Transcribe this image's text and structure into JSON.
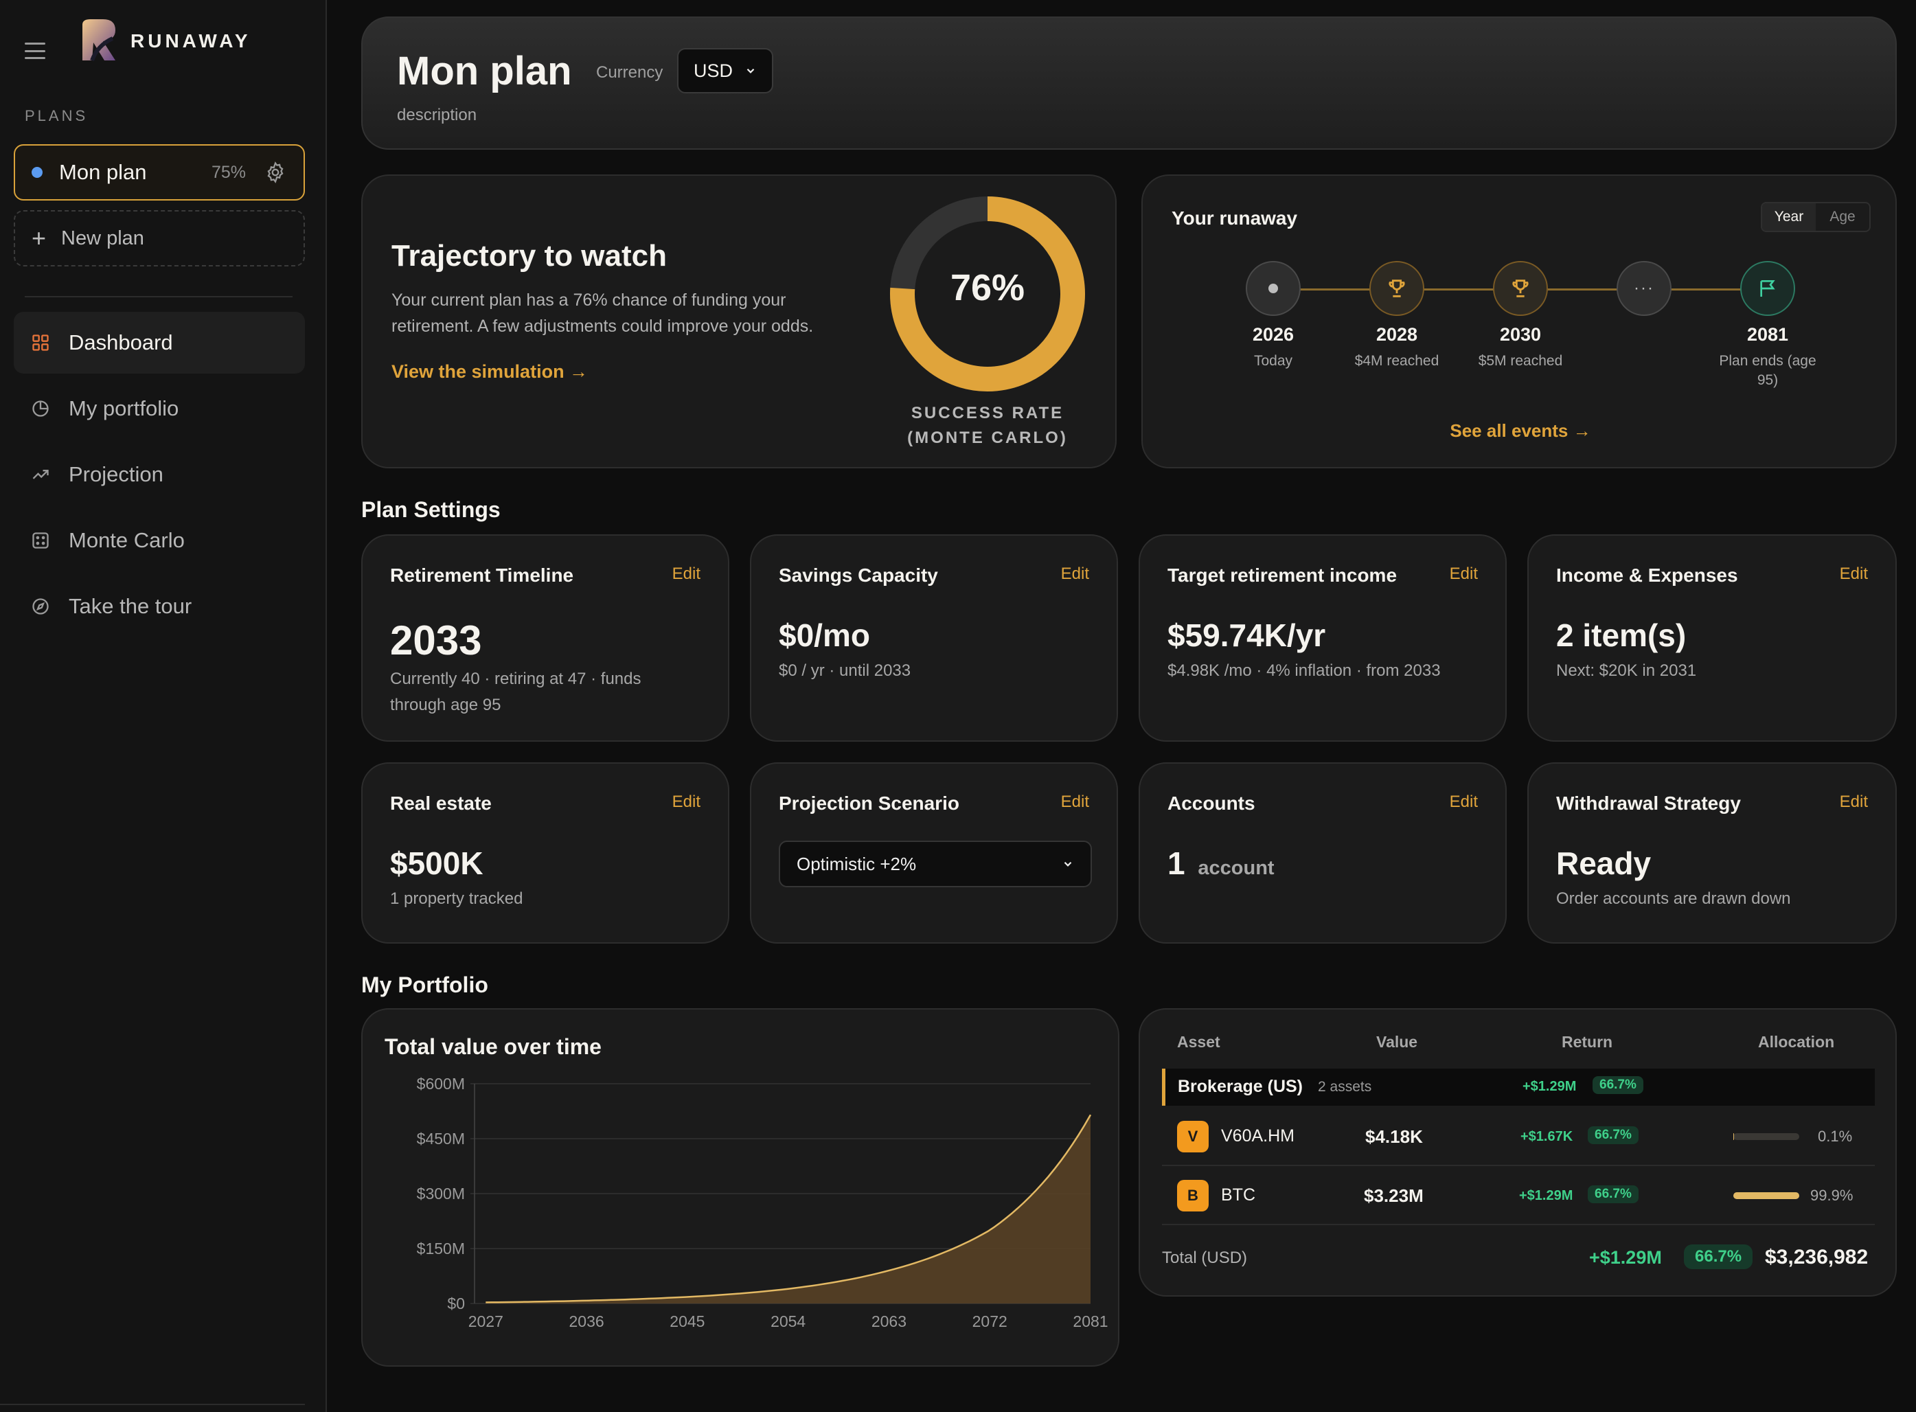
{
  "sidebar": {
    "brand": "RUNAWAY",
    "plans_label": "PLANS",
    "active_plan": {
      "name": "Mon plan",
      "percent": "75%"
    },
    "new_plan_label": "New plan",
    "nav": [
      {
        "label": "Dashboard",
        "icon": "grid-icon",
        "active": true
      },
      {
        "label": "My portfolio",
        "icon": "pie-chart-icon"
      },
      {
        "label": "Projection",
        "icon": "trend-up-icon"
      },
      {
        "label": "Monte Carlo",
        "icon": "dice-icon"
      },
      {
        "label": "Take the tour",
        "icon": "compass-icon"
      }
    ]
  },
  "header": {
    "title": "Mon plan",
    "currency_label": "Currency",
    "currency_value": "USD",
    "description": "description"
  },
  "trajectory": {
    "title": "Trajectory to watch",
    "text": "Your current plan has a 76% chance of funding your retirement. A few adjustments could improve your odds.",
    "link": "View the simulation →",
    "success_rate": 0.76,
    "success_label": "76%",
    "success_caption_1": "SUCCESS RATE",
    "success_caption_2": "(MONTE CARLO)"
  },
  "runaway": {
    "title": "Your runaway",
    "toggle": [
      "Year",
      "Age"
    ],
    "milestones": [
      {
        "year": "2026",
        "label": "Today",
        "icon": "dot-icon"
      },
      {
        "year": "2028",
        "label": "$4M reached",
        "icon": "trophy-icon"
      },
      {
        "year": "2030",
        "label": "$5M reached",
        "icon": "trophy-icon"
      },
      {
        "year": "",
        "label": "",
        "icon": "ellipsis-icon"
      },
      {
        "year": "2081",
        "label": "Plan ends (age 95)",
        "icon": "flag-icon"
      }
    ],
    "see_all": "See all events →"
  },
  "plan_settings": {
    "title": "Plan Settings",
    "edit_label": "Edit",
    "cards": {
      "timeline": {
        "title": "Retirement Timeline",
        "value": "2033",
        "sub": "Currently 40 · retiring at 47 · funds through age 95"
      },
      "savings": {
        "title": "Savings Capacity",
        "value": "$0/mo",
        "sub": "$0 / yr · until 2033"
      },
      "income": {
        "title": "Target retirement income",
        "value": "$59.74K/yr",
        "sub": "$4.98K /mo · 4% inflation · from 2033"
      },
      "expenses": {
        "title": "Income & Expenses",
        "value": "2 item(s)",
        "sub": "Next: $20K in 2031"
      },
      "real_estate": {
        "title": "Real estate",
        "value": "$500K",
        "sub": "1 property tracked"
      },
      "scenario": {
        "title": "Projection Scenario",
        "select_value": "Optimistic +2%"
      },
      "accounts": {
        "title": "Accounts",
        "count": "1",
        "unit": "account"
      },
      "withdrawal": {
        "title": "Withdrawal Strategy",
        "value": "Ready",
        "sub": "Order accounts are drawn down"
      }
    }
  },
  "portfolio": {
    "title": "My Portfolio",
    "table": {
      "headers": [
        "Asset",
        "Value",
        "Return",
        "Allocation"
      ],
      "group": {
        "name": "Brokerage (US)",
        "count": "2 assets",
        "return": "+$1.29M",
        "return_pct": "66.7%"
      },
      "rows": [
        {
          "badge": "V",
          "name": "V60A.HM",
          "value": "$4.18K",
          "return": "+$1.67K",
          "return_pct": "66.7%",
          "alloc_label": "0.1%",
          "alloc": 0.001
        },
        {
          "badge": "B",
          "name": "BTC",
          "value": "$3.23M",
          "return": "+$1.29M",
          "return_pct": "66.7%",
          "alloc_label": "99.9%",
          "alloc": 0.999
        }
      ],
      "total_label": "Total (USD)",
      "total_return": "+$1.29M",
      "total_return_pct": "66.7%",
      "total_value": "$3,236,982"
    }
  },
  "colors": {
    "accent": "#e0a43b",
    "gain": "#3fd08a",
    "plan_dot": "#5b9bf0"
  },
  "chart_data": {
    "type": "area",
    "title": "Total value over time",
    "x": [
      2027,
      2036,
      2045,
      2054,
      2063,
      2072,
      2081
    ],
    "y_yticks": [
      "$0",
      "$150M",
      "$300M",
      "$450M",
      "$600M"
    ],
    "yticks": [
      0,
      150,
      300,
      450,
      600
    ],
    "series": [
      {
        "values": [
          3,
          8,
          18,
          40,
          90,
          200,
          515
        ]
      }
    ],
    "ylim": [
      0,
      600
    ],
    "xlim": [
      2026,
      2081
    ],
    "grid": true
  }
}
